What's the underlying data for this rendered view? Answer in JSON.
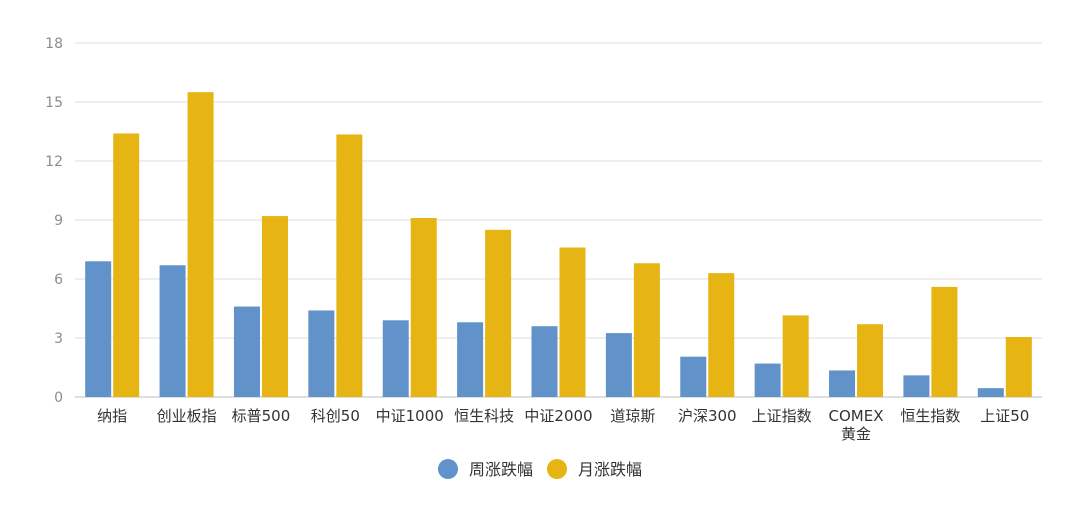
{
  "chart_data": {
    "type": "bar",
    "categories": [
      [
        "纳指"
      ],
      [
        "创业板指"
      ],
      [
        "标普500"
      ],
      [
        "科创50"
      ],
      [
        "中证1000"
      ],
      [
        "恒生科技"
      ],
      [
        "中证2000"
      ],
      [
        "道琼斯"
      ],
      [
        "沪深300"
      ],
      [
        "上证指数"
      ],
      [
        "COMEX",
        "黄金"
      ],
      [
        "恒生指数"
      ],
      [
        "上证50"
      ]
    ],
    "series": [
      {
        "name": "周涨跌幅",
        "color": "#6192c9",
        "values": [
          6.9,
          6.7,
          4.6,
          4.4,
          3.9,
          3.8,
          3.6,
          3.25,
          2.05,
          1.7,
          1.35,
          1.1,
          0.45
        ]
      },
      {
        "name": "月涨跌幅",
        "color": "#e6b413",
        "values": [
          13.4,
          15.5,
          9.2,
          13.35,
          9.1,
          8.5,
          7.6,
          6.8,
          6.3,
          4.15,
          3.7,
          5.6,
          3.05
        ]
      }
    ],
    "yticks": [
      "0",
      "3",
      "6",
      "9",
      "12",
      "15",
      "18"
    ],
    "ylim": [
      0,
      18
    ],
    "grid": true,
    "legend_position": "bottom-center",
    "gridline_color": "#dddddd",
    "axis_color": "#bfbfbf"
  }
}
